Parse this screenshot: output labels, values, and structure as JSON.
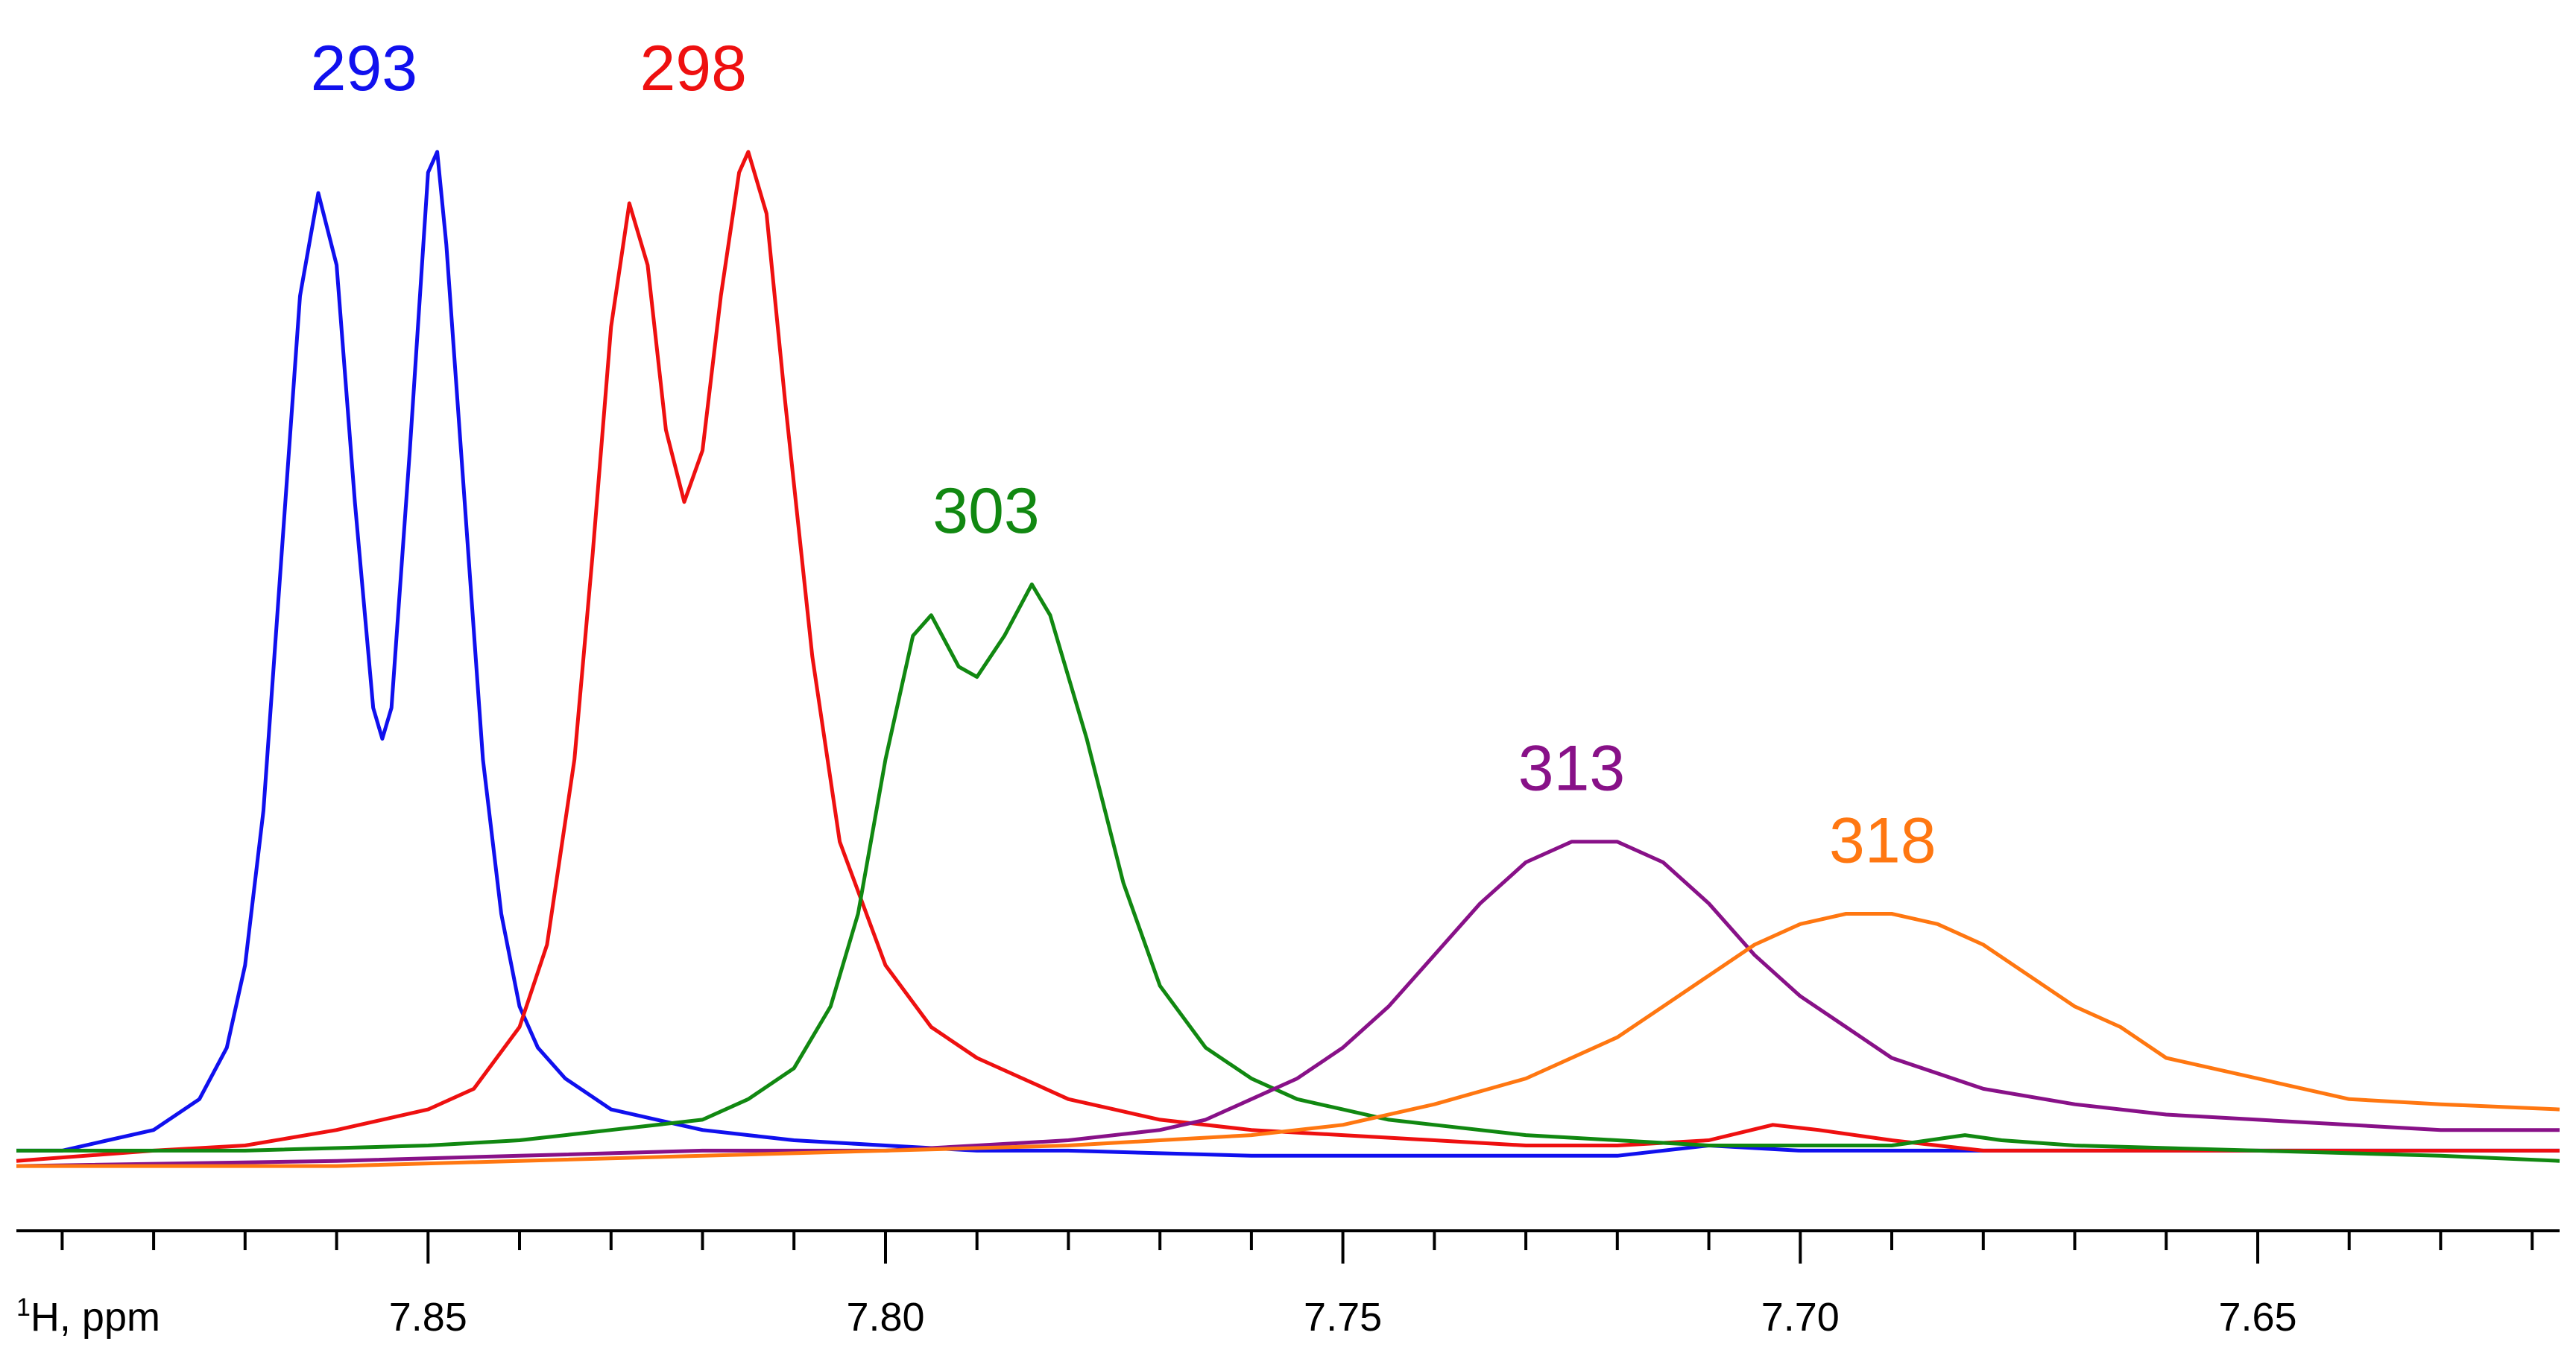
{
  "chart_data": {
    "type": "line",
    "xlabel_superscript": "1",
    "xlabel": "H, ppm",
    "x_reversed": true,
    "xlim": [
      7.895,
      7.617
    ],
    "ylim": [
      0,
      1.0
    ],
    "major_ticks": [
      7.85,
      7.8,
      7.75,
      7.7,
      7.65
    ],
    "tick_labels": [
      "7.85",
      "7.80",
      "7.75",
      "7.70",
      "7.65"
    ],
    "minor_tick_step": 0.01,
    "grid": false,
    "series": [
      {
        "name": "293",
        "color": "#1010ee",
        "points": [
          [
            7.895,
            0.02
          ],
          [
            7.89,
            0.02
          ],
          [
            7.885,
            0.03
          ],
          [
            7.88,
            0.04
          ],
          [
            7.875,
            0.07
          ],
          [
            7.872,
            0.12
          ],
          [
            7.87,
            0.2
          ],
          [
            7.868,
            0.35
          ],
          [
            7.866,
            0.6
          ],
          [
            7.864,
            0.85
          ],
          [
            7.862,
            0.95
          ],
          [
            7.86,
            0.88
          ],
          [
            7.858,
            0.65
          ],
          [
            7.856,
            0.45
          ],
          [
            7.855,
            0.42
          ],
          [
            7.854,
            0.45
          ],
          [
            7.852,
            0.7
          ],
          [
            7.85,
            0.97
          ],
          [
            7.849,
            0.99
          ],
          [
            7.848,
            0.9
          ],
          [
            7.846,
            0.65
          ],
          [
            7.844,
            0.4
          ],
          [
            7.842,
            0.25
          ],
          [
            7.84,
            0.16
          ],
          [
            7.838,
            0.12
          ],
          [
            7.835,
            0.09
          ],
          [
            7.83,
            0.06
          ],
          [
            7.825,
            0.05
          ],
          [
            7.82,
            0.04
          ],
          [
            7.815,
            0.035
          ],
          [
            7.81,
            0.03
          ],
          [
            7.8,
            0.025
          ],
          [
            7.79,
            0.02
          ],
          [
            7.78,
            0.02
          ],
          [
            7.76,
            0.015
          ],
          [
            7.74,
            0.015
          ],
          [
            7.72,
            0.015
          ],
          [
            7.71,
            0.025
          ],
          [
            7.7,
            0.02
          ],
          [
            7.69,
            0.02
          ],
          [
            7.68,
            0.02
          ],
          [
            7.66,
            0.02
          ],
          [
            7.64,
            0.02
          ],
          [
            7.617,
            0.02
          ]
        ]
      },
      {
        "name": "298",
        "color": "#ee1010",
        "points": [
          [
            7.895,
            0.01
          ],
          [
            7.88,
            0.02
          ],
          [
            7.87,
            0.025
          ],
          [
            7.86,
            0.04
          ],
          [
            7.85,
            0.06
          ],
          [
            7.845,
            0.08
          ],
          [
            7.84,
            0.14
          ],
          [
            7.837,
            0.22
          ],
          [
            7.834,
            0.4
          ],
          [
            7.832,
            0.6
          ],
          [
            7.83,
            0.82
          ],
          [
            7.828,
            0.94
          ],
          [
            7.826,
            0.88
          ],
          [
            7.824,
            0.72
          ],
          [
            7.822,
            0.65
          ],
          [
            7.82,
            0.7
          ],
          [
            7.818,
            0.85
          ],
          [
            7.816,
            0.97
          ],
          [
            7.815,
            0.99
          ],
          [
            7.813,
            0.93
          ],
          [
            7.811,
            0.75
          ],
          [
            7.808,
            0.5
          ],
          [
            7.805,
            0.32
          ],
          [
            7.8,
            0.2
          ],
          [
            7.795,
            0.14
          ],
          [
            7.79,
            0.11
          ],
          [
            7.785,
            0.09
          ],
          [
            7.78,
            0.07
          ],
          [
            7.775,
            0.06
          ],
          [
            7.77,
            0.05
          ],
          [
            7.76,
            0.04
          ],
          [
            7.75,
            0.035
          ],
          [
            7.74,
            0.03
          ],
          [
            7.73,
            0.025
          ],
          [
            7.72,
            0.025
          ],
          [
            7.71,
            0.03
          ],
          [
            7.703,
            0.045
          ],
          [
            7.698,
            0.04
          ],
          [
            7.69,
            0.03
          ],
          [
            7.68,
            0.02
          ],
          [
            7.66,
            0.02
          ],
          [
            7.64,
            0.02
          ],
          [
            7.617,
            0.02
          ]
        ]
      },
      {
        "name": "303",
        "color": "#118811",
        "points": [
          [
            7.895,
            0.02
          ],
          [
            7.87,
            0.02
          ],
          [
            7.85,
            0.025
          ],
          [
            7.84,
            0.03
          ],
          [
            7.83,
            0.04
          ],
          [
            7.82,
            0.05
          ],
          [
            7.815,
            0.07
          ],
          [
            7.81,
            0.1
          ],
          [
            7.806,
            0.16
          ],
          [
            7.803,
            0.25
          ],
          [
            7.8,
            0.4
          ],
          [
            7.797,
            0.52
          ],
          [
            7.795,
            0.54
          ],
          [
            7.792,
            0.49
          ],
          [
            7.79,
            0.48
          ],
          [
            7.787,
            0.52
          ],
          [
            7.784,
            0.57
          ],
          [
            7.782,
            0.54
          ],
          [
            7.778,
            0.42
          ],
          [
            7.774,
            0.28
          ],
          [
            7.77,
            0.18
          ],
          [
            7.765,
            0.12
          ],
          [
            7.76,
            0.09
          ],
          [
            7.755,
            0.07
          ],
          [
            7.75,
            0.06
          ],
          [
            7.745,
            0.05
          ],
          [
            7.74,
            0.045
          ],
          [
            7.73,
            0.035
          ],
          [
            7.72,
            0.03
          ],
          [
            7.71,
            0.025
          ],
          [
            7.7,
            0.025
          ],
          [
            7.69,
            0.025
          ],
          [
            7.682,
            0.035
          ],
          [
            7.678,
            0.03
          ],
          [
            7.67,
            0.025
          ],
          [
            7.65,
            0.02
          ],
          [
            7.63,
            0.015
          ],
          [
            7.617,
            0.01
          ]
        ]
      },
      {
        "name": "313",
        "color": "#881188",
        "points": [
          [
            7.895,
            0.005
          ],
          [
            7.86,
            0.01
          ],
          [
            7.84,
            0.015
          ],
          [
            7.82,
            0.02
          ],
          [
            7.8,
            0.02
          ],
          [
            7.79,
            0.025
          ],
          [
            7.78,
            0.03
          ],
          [
            7.77,
            0.04
          ],
          [
            7.765,
            0.05
          ],
          [
            7.76,
            0.07
          ],
          [
            7.755,
            0.09
          ],
          [
            7.75,
            0.12
          ],
          [
            7.745,
            0.16
          ],
          [
            7.74,
            0.21
          ],
          [
            7.735,
            0.26
          ],
          [
            7.73,
            0.3
          ],
          [
            7.725,
            0.32
          ],
          [
            7.72,
            0.32
          ],
          [
            7.715,
            0.3
          ],
          [
            7.71,
            0.26
          ],
          [
            7.705,
            0.21
          ],
          [
            7.7,
            0.17
          ],
          [
            7.695,
            0.14
          ],
          [
            7.69,
            0.11
          ],
          [
            7.68,
            0.08
          ],
          [
            7.67,
            0.065
          ],
          [
            7.66,
            0.055
          ],
          [
            7.65,
            0.05
          ],
          [
            7.64,
            0.045
          ],
          [
            7.63,
            0.04
          ],
          [
            7.617,
            0.04
          ]
        ]
      },
      {
        "name": "318",
        "color": "#ff7711",
        "points": [
          [
            7.895,
            0.005
          ],
          [
            7.86,
            0.005
          ],
          [
            7.84,
            0.01
          ],
          [
            7.82,
            0.015
          ],
          [
            7.8,
            0.02
          ],
          [
            7.78,
            0.025
          ],
          [
            7.77,
            0.03
          ],
          [
            7.76,
            0.035
          ],
          [
            7.75,
            0.045
          ],
          [
            7.74,
            0.065
          ],
          [
            7.73,
            0.09
          ],
          [
            7.72,
            0.13
          ],
          [
            7.715,
            0.16
          ],
          [
            7.71,
            0.19
          ],
          [
            7.705,
            0.22
          ],
          [
            7.7,
            0.24
          ],
          [
            7.695,
            0.25
          ],
          [
            7.69,
            0.25
          ],
          [
            7.685,
            0.24
          ],
          [
            7.68,
            0.22
          ],
          [
            7.675,
            0.19
          ],
          [
            7.67,
            0.16
          ],
          [
            7.665,
            0.14
          ],
          [
            7.66,
            0.11
          ],
          [
            7.65,
            0.09
          ],
          [
            7.64,
            0.07
          ],
          [
            7.63,
            0.065
          ],
          [
            7.617,
            0.06
          ]
        ]
      }
    ],
    "annotations": [
      {
        "text": "293",
        "x": 7.857,
        "y": 1.05,
        "color": "#1010ee"
      },
      {
        "text": "298",
        "x": 7.821,
        "y": 1.05,
        "color": "#ee1010"
      },
      {
        "text": "303",
        "x": 7.789,
        "y": 0.62,
        "color": "#118811"
      },
      {
        "text": "313",
        "x": 7.725,
        "y": 0.37,
        "color": "#881188"
      },
      {
        "text": "318",
        "x": 7.691,
        "y": 0.3,
        "color": "#ff7711"
      }
    ]
  }
}
